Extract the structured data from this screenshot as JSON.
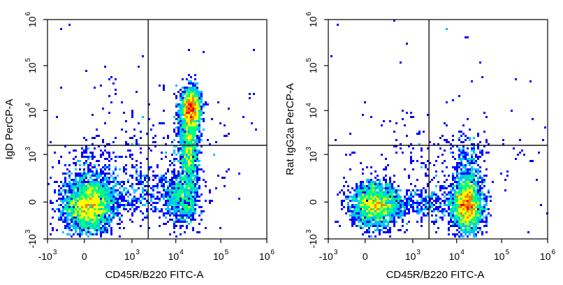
{
  "chart_data": [
    {
      "type": "scatter",
      "subtype": "flow-cytometry-density-plot",
      "title": "",
      "xlabel": "CD45R/B220 FITC-A",
      "ylabel": "IgD PerCP-A",
      "x_scale": "biexponential",
      "y_scale": "biexponential",
      "xlim": [
        -1000,
        1000000
      ],
      "ylim": [
        -1000,
        1000000
      ],
      "x_ticks": [
        {
          "base": "-10",
          "exp": "3",
          "value": -1000
        },
        {
          "base": "0",
          "exp": "",
          "value": 0
        },
        {
          "base": "10",
          "exp": "3",
          "value": 1000
        },
        {
          "base": "10",
          "exp": "4",
          "value": 10000
        },
        {
          "base": "10",
          "exp": "5",
          "value": 100000
        },
        {
          "base": "10",
          "exp": "6",
          "value": 1000000
        }
      ],
      "y_ticks": [
        {
          "base": "-10",
          "exp": "3",
          "value": -1000
        },
        {
          "base": "0",
          "exp": "",
          "value": 0
        },
        {
          "base": "10",
          "exp": "3",
          "value": 1000
        },
        {
          "base": "10",
          "exp": "4",
          "value": 10000
        },
        {
          "base": "10",
          "exp": "5",
          "value": 100000
        },
        {
          "base": "10",
          "exp": "6",
          "value": 1000000
        }
      ],
      "quadrant_gate": {
        "x": 2500,
        "y": 1700
      },
      "populations": [
        {
          "x": 150,
          "y": 200,
          "density": "high"
        },
        {
          "x": 20000,
          "y": 15000,
          "density": "high"
        },
        {
          "x": 20000,
          "y": 200,
          "density": "medium"
        }
      ]
    },
    {
      "type": "scatter",
      "subtype": "flow-cytometry-density-plot",
      "title": "",
      "xlabel": "CD45R/B220 FITC-A",
      "ylabel": "Rat IgG2a PerCP-A",
      "x_scale": "biexponential",
      "y_scale": "biexponential",
      "xlim": [
        -1000,
        1000000
      ],
      "ylim": [
        -1000,
        1000000
      ],
      "x_ticks": [
        {
          "base": "-10",
          "exp": "3",
          "value": -1000
        },
        {
          "base": "0",
          "exp": "",
          "value": 0
        },
        {
          "base": "10",
          "exp": "3",
          "value": 1000
        },
        {
          "base": "10",
          "exp": "4",
          "value": 10000
        },
        {
          "base": "10",
          "exp": "5",
          "value": 100000
        },
        {
          "base": "10",
          "exp": "6",
          "value": 1000000
        }
      ],
      "y_ticks": [
        {
          "base": "-10",
          "exp": "3",
          "value": -1000
        },
        {
          "base": "0",
          "exp": "",
          "value": 0
        },
        {
          "base": "10",
          "exp": "3",
          "value": 1000
        },
        {
          "base": "10",
          "exp": "4",
          "value": 10000
        },
        {
          "base": "10",
          "exp": "5",
          "value": 100000
        },
        {
          "base": "10",
          "exp": "6",
          "value": 1000000
        }
      ],
      "quadrant_gate": {
        "x": 2500,
        "y": 1700
      },
      "populations": [
        {
          "x": 150,
          "y": 100,
          "density": "high"
        },
        {
          "x": 20000,
          "y": 0,
          "density": "high"
        }
      ]
    }
  ],
  "colors": {
    "density_scale": [
      "#0000ff",
      "#00c0ff",
      "#00ff80",
      "#ffff00",
      "#ff8000",
      "#ff0000"
    ],
    "axis": "#000000",
    "gate_line": "#000000"
  }
}
